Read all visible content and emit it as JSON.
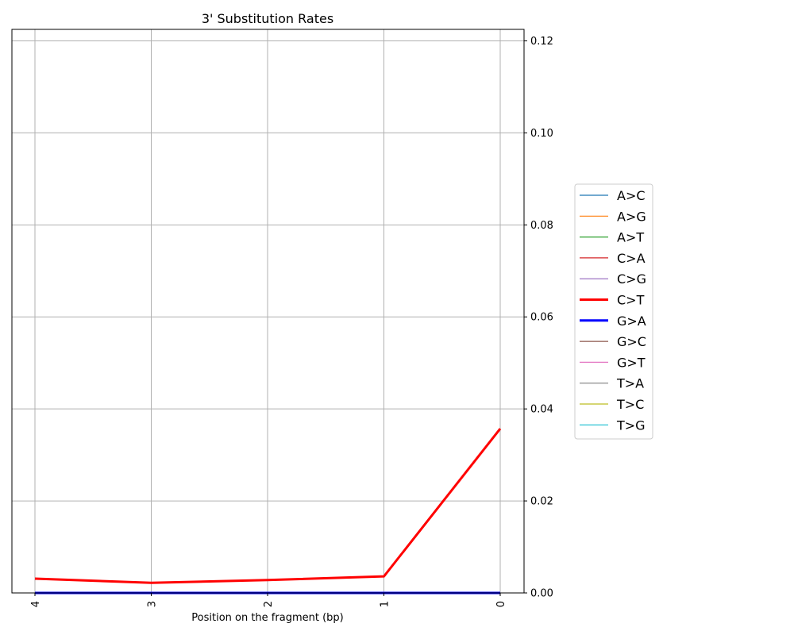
{
  "chart_data": {
    "type": "line",
    "title": "3' Substitution Rates",
    "xlabel": "Position on the fragment (bp)",
    "ylabel": "",
    "x": [
      4,
      3,
      2,
      1,
      0
    ],
    "x_reversed": true,
    "x_tick_labels": [
      "4",
      "3",
      "2",
      "1",
      "0"
    ],
    "x_tick_rotation": 90,
    "ylim": [
      0,
      0.1225
    ],
    "y_ticks": [
      0.0,
      0.02,
      0.04,
      0.06,
      0.08,
      0.1,
      0.12
    ],
    "y_tick_labels": [
      "0.00",
      "0.02",
      "0.04",
      "0.06",
      "0.08",
      "0.10",
      "0.12"
    ],
    "y_axis_side": "right",
    "grid": true,
    "legend_position": "right-outside",
    "series": [
      {
        "name": "A>C",
        "color": "#1f77b4",
        "linewidth": 1,
        "values": [
          0,
          0,
          0,
          0,
          0
        ]
      },
      {
        "name": "A>G",
        "color": "#ff7f0e",
        "linewidth": 1,
        "values": [
          0,
          0,
          0,
          0,
          0
        ]
      },
      {
        "name": "A>T",
        "color": "#2ca02c",
        "linewidth": 1,
        "values": [
          0,
          0,
          0,
          0,
          0
        ]
      },
      {
        "name": "C>A",
        "color": "#d62728",
        "linewidth": 1,
        "values": [
          0,
          0,
          0,
          0,
          0
        ]
      },
      {
        "name": "C>G",
        "color": "#9467bd",
        "linewidth": 1,
        "values": [
          0,
          0,
          0,
          0,
          0
        ]
      },
      {
        "name": "C>T",
        "color": "#ff0000",
        "linewidth": 3,
        "values": [
          0.0031,
          0.0022,
          0.0028,
          0.0036,
          0.0357
        ]
      },
      {
        "name": "G>A",
        "color": "#0000ff",
        "linewidth": 3,
        "values": [
          0,
          0,
          0,
          0,
          0
        ]
      },
      {
        "name": "G>C",
        "color": "#8c564b",
        "linewidth": 1,
        "values": [
          0,
          0,
          0,
          0,
          0
        ]
      },
      {
        "name": "G>T",
        "color": "#e377c2",
        "linewidth": 1,
        "values": [
          0,
          0,
          0,
          0,
          0
        ]
      },
      {
        "name": "T>A",
        "color": "#7f7f7f",
        "linewidth": 1,
        "values": [
          0,
          0,
          0,
          0,
          0
        ]
      },
      {
        "name": "T>C",
        "color": "#bcbd22",
        "linewidth": 1,
        "values": [
          0,
          0,
          0,
          0,
          0
        ]
      },
      {
        "name": "T>G",
        "color": "#17becf",
        "linewidth": 1,
        "values": [
          0,
          0,
          0,
          0,
          0
        ]
      }
    ]
  }
}
